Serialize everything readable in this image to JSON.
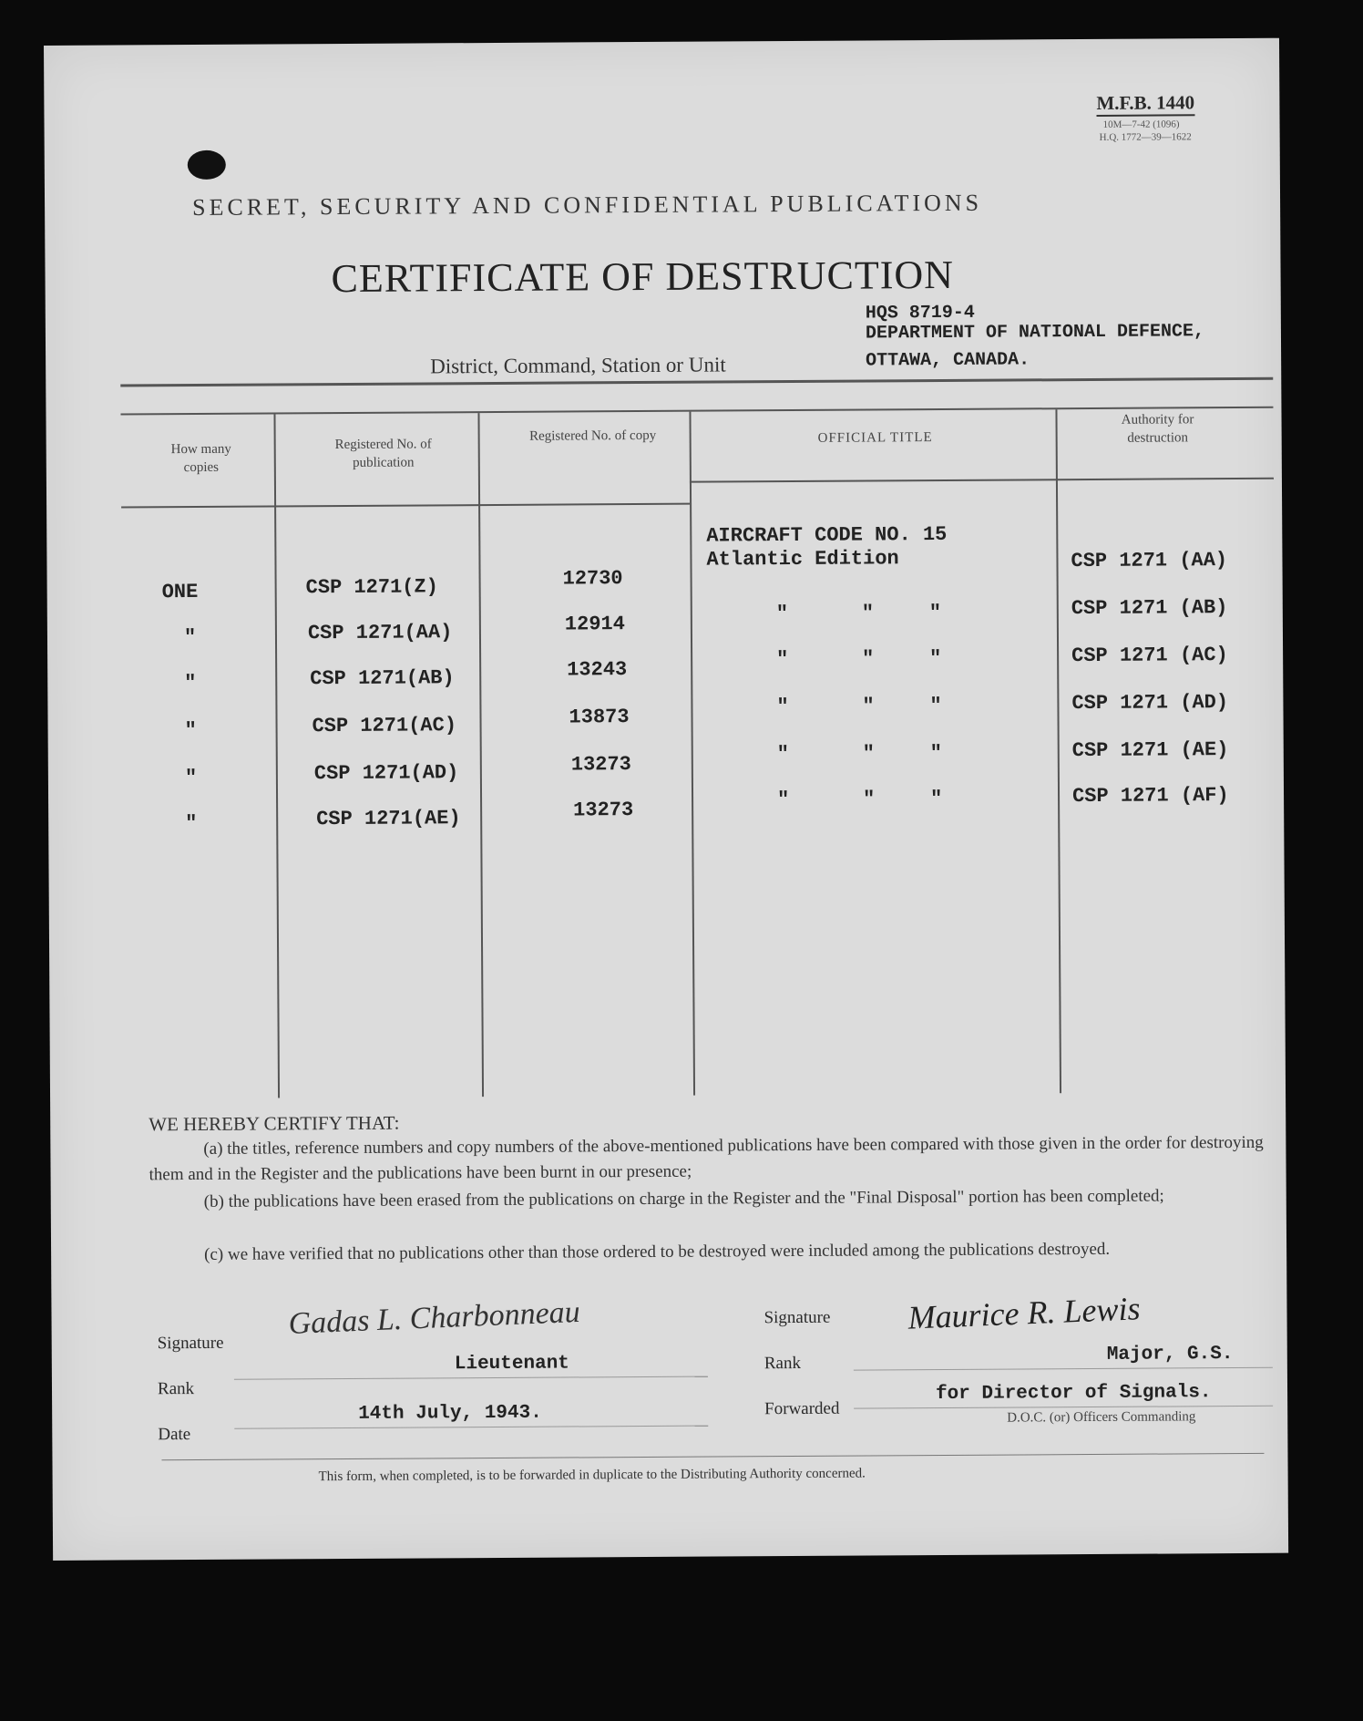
{
  "form_number": "M.F.B. 1440",
  "form_codes": [
    "10M—7-42 (1096)",
    "H.Q. 1772—39—1622"
  ],
  "header": "SECRET, SECURITY AND CONFIDENTIAL PUBLICATIONS",
  "title": "CERTIFICATE OF DESTRUCTION",
  "unit": {
    "label": "District, Command, Station or Unit",
    "lines": [
      "HQS 8719-4",
      "DEPARTMENT OF NATIONAL DEFENCE,",
      "OTTAWA, CANADA."
    ]
  },
  "table": {
    "columns": [
      "How many copies",
      "Registered No. of publication",
      "Registered No. of copy",
      "OFFICIAL TITLE",
      "Authority for destruction"
    ],
    "title_lines": [
      "AIRCRAFT CODE NO. 15",
      "Atlantic Edition"
    ],
    "rows": [
      {
        "copies": "ONE",
        "publication": "CSP 1271(Z)",
        "copy": "12730",
        "authority": "CSP 1271 (AA)"
      },
      {
        "copies": "\"",
        "publication": "CSP 1271(AA)",
        "copy": "12914",
        "authority": "CSP 1271 (AB)"
      },
      {
        "copies": "\"",
        "publication": "CSP 1271(AB)",
        "copy": "13243",
        "authority": "CSP 1271 (AC)"
      },
      {
        "copies": "\"",
        "publication": "CSP 1271(AC)",
        "copy": "13873",
        "authority": "CSP 1271 (AD)"
      },
      {
        "copies": "\"",
        "publication": "CSP 1271(AD)",
        "copy": "13273",
        "authority": "CSP 1271 (AE)"
      },
      {
        "copies": "\"",
        "publication": "CSP 1271(AE)",
        "copy": "13273",
        "authority": "CSP 1271 (AF)"
      }
    ],
    "ditto": "\""
  },
  "certify": {
    "heading": "WE HEREBY CERTIFY THAT:",
    "a": "(a) the titles, reference numbers and copy numbers of the above-mentioned publications have been compared with those given in the order for destroying them and in the Register and the publications have been burnt in our presence;",
    "b": "(b) the publications have been erased from the publications on charge in the Register and the \"Final Disposal\" portion has been completed;",
    "c": "(c) we have verified that no publications other than those ordered to be destroyed were included among the publications destroyed."
  },
  "left_sign": {
    "signature_label": "Signature",
    "signature": "Gadas L. Charbonneau",
    "rank_label": "Rank",
    "rank": "Lieutenant",
    "date_label": "Date",
    "date": "14th July, 1943."
  },
  "right_sign": {
    "signature_label": "Signature",
    "signature": "Maurice R. Lewis",
    "rank_label": "Rank",
    "rank": "Major, G.S.",
    "forwarded_label": "Forwarded",
    "forwarded": "for Director of Signals.",
    "caption": "D.O.C. (or) Officers Commanding"
  },
  "footer": "This form, when completed, is to be forwarded in duplicate to the Distributing Authority concerned."
}
